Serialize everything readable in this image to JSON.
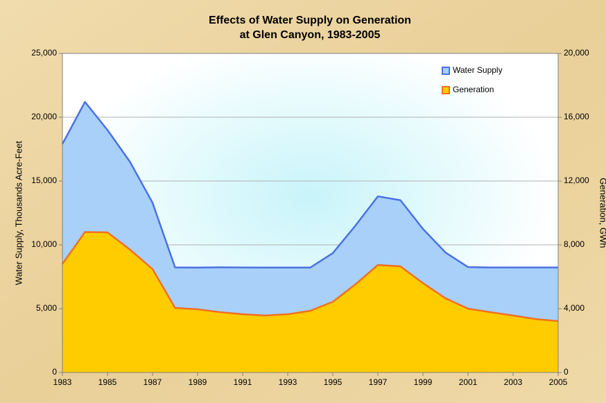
{
  "chart_data": {
    "type": "area",
    "title": "Effects of Water Supply on Generation",
    "subtitle": "at Glen Canyon, 1983-2005",
    "y_label": "Water Supply, Thousands Acre-Feet",
    "y2_label": "Generation, GWh",
    "x": [
      1983,
      1984,
      1985,
      1986,
      1987,
      1988,
      1989,
      1990,
      1991,
      1992,
      1993,
      1994,
      1995,
      1996,
      1997,
      1998,
      1999,
      2000,
      2001,
      2002,
      2003,
      2004,
      2005
    ],
    "xlim": [
      1983,
      2005
    ],
    "xticks": [
      1983,
      1985,
      1987,
      1989,
      1991,
      1993,
      1995,
      1997,
      1999,
      2001,
      2003,
      2005
    ],
    "ylim": [
      0,
      25000
    ],
    "yticks": [
      0,
      {
        "value": 5000,
        "label": "5,000"
      },
      {
        "value": 10000,
        "label": "10,000"
      },
      {
        "value": 15000,
        "label": "15,000"
      },
      {
        "value": 20000,
        "label": "20,000"
      },
      {
        "value": 25000,
        "label": "25,000"
      }
    ],
    "y2lim": [
      0,
      20000
    ],
    "y2ticks": [
      0,
      {
        "value": 4000,
        "label": "4,000"
      },
      {
        "value": 8000,
        "label": "8,000"
      },
      {
        "value": 12000,
        "label": "12,000"
      },
      {
        "value": 16000,
        "label": "16,000"
      },
      {
        "value": 20000,
        "label": "20,000"
      }
    ],
    "grid": true,
    "legend": "top-right",
    "series": [
      {
        "name": "Water Supply",
        "color": "#a8d0f8",
        "edge": "#4a72e0",
        "values": [
          17900,
          21200,
          19000,
          16500,
          13300,
          8230,
          8220,
          8240,
          8230,
          8220,
          8220,
          8220,
          9350,
          11500,
          13800,
          13500,
          11250,
          9400,
          8260,
          8230,
          8230,
          8230,
          8230
        ]
      },
      {
        "name": "Generation",
        "color": "#ffcc00",
        "edge": "#f07020",
        "axis": "y2",
        "values": [
          6800,
          8800,
          8780,
          7700,
          6480,
          4050,
          3960,
          3780,
          3650,
          3570,
          3650,
          3870,
          4430,
          5520,
          6740,
          6650,
          5600,
          4650,
          4000,
          3780,
          3570,
          3350,
          3220
        ]
      }
    ]
  }
}
